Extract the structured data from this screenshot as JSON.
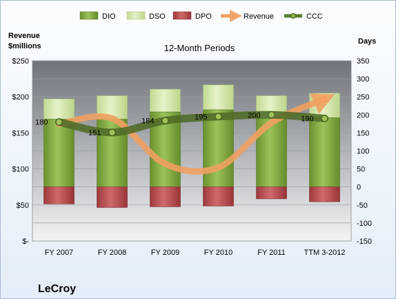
{
  "company": "LeCroy",
  "chart_data": {
    "type": "bar",
    "title": "12-Month Periods",
    "left_axis_label": [
      "Revenue",
      "$millions"
    ],
    "right_axis_label": "Days",
    "categories": [
      "FY 2007",
      "FY 2008",
      "FY 2009",
      "FY 2010",
      "FY 2011",
      "TTM 3-2012"
    ],
    "left_ticks": [
      "$-",
      "$50",
      "$100",
      "$150",
      "$200",
      "$250"
    ],
    "left_ylim": [
      0,
      250
    ],
    "right_ylim": [
      -150,
      350
    ],
    "right_ticks": [
      "-150",
      "-100",
      "-50",
      "0",
      "50",
      "100",
      "150",
      "200",
      "250",
      "300",
      "350"
    ],
    "grid": true,
    "legend_position": "top",
    "series": [
      {
        "name": "DIO",
        "kind": "stacked-bar",
        "color": "#7aa33a",
        "values": [
          188,
          188,
          208,
          214,
          190,
          192
        ]
      },
      {
        "name": "DSO",
        "kind": "stacked-bar",
        "color": "#d4e8a8",
        "values": [
          56,
          65,
          63,
          69,
          63,
          68
        ]
      },
      {
        "name": "DPO",
        "kind": "stacked-bar-negative",
        "color": "#b5474a",
        "values": [
          -47,
          -57,
          -55,
          -53,
          -33,
          -41
        ]
      },
      {
        "name": "Revenue",
        "kind": "line-left-axis",
        "color": "#f0a060",
        "values": [
          162,
          170,
          107,
          102,
          164,
          197
        ]
      },
      {
        "name": "CCC",
        "kind": "line-right-axis",
        "color": "#5b7a2e",
        "values": [
          180,
          151,
          184,
          195,
          200,
          190
        ]
      }
    ],
    "data_labels": [
      "180",
      "151",
      "184",
      "195",
      "200",
      "190"
    ]
  }
}
